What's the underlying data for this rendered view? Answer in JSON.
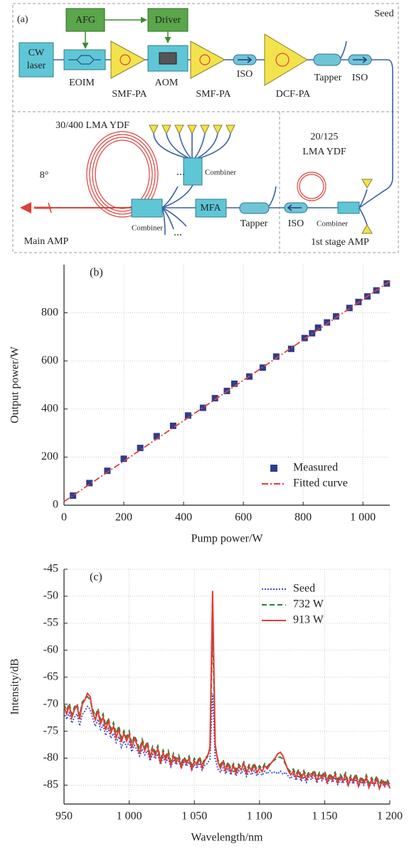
{
  "diagram": {
    "panel_label": "(a)",
    "seed": "Seed",
    "afg": "AFG",
    "driver": "Driver",
    "cw_laser": [
      "CW",
      "laser"
    ],
    "eoim": "EOIM",
    "smf_pa_1": "SMF-PA",
    "aom": "AOM",
    "smf_pa_2": "SMF-PA",
    "iso_1": "ISO",
    "dcf_pa": "DCF-PA",
    "tapper_1": "Tapper",
    "iso_2": "ISO",
    "main_fiber": "30/400 LMA YDF",
    "combiner_1": "Combiner",
    "angle": "8°",
    "combiner_2": "Combiner",
    "mfa": "MFA",
    "tapper_2": "Tapper",
    "iso_3": "ISO",
    "stage_fiber": [
      "20/125",
      "LMA YDF"
    ],
    "combiner_3": "Combiner",
    "main_amp": "Main AMP",
    "first_stage_amp": "1st stage AMP"
  },
  "chart_data": [
    {
      "type": "scatter",
      "panel_label": "(b)",
      "x_label": "Pump power/W",
      "y_label": "Output power/W",
      "xlim": [
        0,
        1090
      ],
      "ylim": [
        0,
        1000
      ],
      "xticks": [
        0,
        200,
        400,
        600,
        800,
        {
          "value": 1000,
          "label": "1 000"
        }
      ],
      "yticks": [
        0,
        200,
        400,
        600,
        800
      ],
      "grid": true,
      "legend": "lower right",
      "series": [
        {
          "name": "Measured",
          "color": "#2e3d8c",
          "marker": "square",
          "x": [
            30,
            85,
            145,
            200,
            255,
            310,
            365,
            415,
            465,
            505,
            545,
            570,
            620,
            665,
            710,
            760,
            805,
            830,
            850,
            880,
            910,
            955,
            985,
            1015,
            1045,
            1080
          ],
          "values": [
            40,
            92,
            143,
            193,
            238,
            287,
            330,
            373,
            405,
            445,
            475,
            505,
            535,
            572,
            618,
            650,
            695,
            715,
            738,
            760,
            785,
            820,
            845,
            868,
            893,
            922
          ]
        },
        {
          "name": "Fitted curve",
          "color": "#e0403a",
          "line_style": "dash-dot",
          "x": [
            0,
            1090
          ],
          "values": [
            15,
            931
          ]
        }
      ]
    },
    {
      "type": "line",
      "panel_label": "(c)",
      "x_label": "Wavelength/nm",
      "y_label": "Intensity/dB",
      "xlim": [
        950,
        1200
      ],
      "ylim": [
        -88.5,
        -45
      ],
      "xticks": [
        950,
        {
          "value": 1000,
          "label": "1 000"
        },
        {
          "value": 1050,
          "label": "1 050"
        },
        {
          "value": 1100,
          "label": "1 100"
        },
        {
          "value": 1150,
          "label": "1 150"
        },
        {
          "value": 1200,
          "label": "1 200"
        }
      ],
      "yticks": [
        -45,
        -50,
        -55,
        -60,
        -65,
        -70,
        -75,
        -80,
        -85
      ],
      "grid": true,
      "legend": "upper right",
      "x": [
        950,
        952,
        954,
        956,
        958,
        960,
        962,
        964,
        966,
        968,
        970,
        972,
        974,
        976,
        978,
        980,
        982,
        984,
        986,
        988,
        990,
        992,
        994,
        996,
        998,
        1000,
        1002,
        1004,
        1006,
        1008,
        1010,
        1012,
        1014,
        1016,
        1018,
        1020,
        1022,
        1024,
        1026,
        1028,
        1030,
        1032,
        1034,
        1036,
        1038,
        1040,
        1042,
        1044,
        1046,
        1048,
        1050,
        1052,
        1054,
        1056,
        1058,
        1060,
        1062,
        1064,
        1066,
        1068,
        1070,
        1072,
        1074,
        1076,
        1078,
        1080,
        1082,
        1084,
        1086,
        1088,
        1090,
        1092,
        1094,
        1096,
        1098,
        1100,
        1102,
        1104,
        1106,
        1108,
        1110,
        1112,
        1114,
        1116,
        1118,
        1120,
        1122,
        1124,
        1126,
        1128,
        1130,
        1132,
        1134,
        1136,
        1138,
        1140,
        1142,
        1144,
        1146,
        1148,
        1150,
        1152,
        1154,
        1156,
        1158,
        1160,
        1162,
        1164,
        1166,
        1168,
        1170,
        1172,
        1174,
        1176,
        1178,
        1180,
        1182,
        1184,
        1186,
        1188,
        1190,
        1192,
        1194,
        1196,
        1198,
        1200
      ],
      "series": [
        {
          "name": "Seed",
          "color": "#3b4fc4",
          "line_style": "dotted",
          "values": [
            -71.5,
            -72.8,
            -71.6,
            -73.5,
            -72.4,
            -71.8,
            -74.0,
            -71.9,
            -71.3,
            -70.4,
            -70.9,
            -72.6,
            -74.1,
            -72.8,
            -74.7,
            -73.9,
            -75.8,
            -74.5,
            -76.3,
            -75.4,
            -77.1,
            -76.0,
            -78.0,
            -76.8,
            -77.9,
            -77.0,
            -78.8,
            -77.6,
            -78.5,
            -79.6,
            -78.3,
            -79.4,
            -78.6,
            -80.5,
            -79.3,
            -80.1,
            -79.2,
            -81.2,
            -79.9,
            -80.8,
            -80.0,
            -81.6,
            -80.3,
            -81.2,
            -80.6,
            -81.9,
            -80.8,
            -81.5,
            -80.7,
            -82.3,
            -81.2,
            -81.9,
            -80.9,
            -82.2,
            -81.3,
            -81.0,
            -80.2,
            -68.0,
            -80.0,
            -82.0,
            -82.6,
            -81.8,
            -82.9,
            -82.0,
            -83.1,
            -82.2,
            -83.3,
            -82.3,
            -82.9,
            -82.0,
            -83.4,
            -82.5,
            -83.1,
            -82.3,
            -83.3,
            -82.6,
            -83.2,
            -82.4,
            -82.9,
            -82.3,
            -82.8,
            -82.5,
            -82.9,
            -82.4,
            -83.0,
            -82.6,
            -83.3,
            -83.8,
            -83.0,
            -84.1,
            -83.2,
            -84.3,
            -83.4,
            -84.5,
            -83.5,
            -84.0,
            -83.3,
            -84.6,
            -83.6,
            -84.2,
            -83.4,
            -84.8,
            -83.8,
            -84.5,
            -83.6,
            -84.9,
            -84.0,
            -84.7,
            -83.7,
            -85.2,
            -84.1,
            -84.8,
            -83.9,
            -85.3,
            -84.3,
            -85.0,
            -84.0,
            -85.5,
            -84.4,
            -85.1,
            -84.2,
            -85.7,
            -84.6,
            -85.3,
            -84.7,
            -85.6
          ]
        },
        {
          "name": "732 W",
          "color": "#2e7d32",
          "line_style": "dashed",
          "values": [
            -70.0,
            -71.2,
            -69.8,
            -71.9,
            -70.5,
            -69.9,
            -72.1,
            -69.6,
            -69.0,
            -68.6,
            -69.2,
            -70.9,
            -72.2,
            -70.8,
            -72.9,
            -71.8,
            -74.0,
            -72.5,
            -74.6,
            -73.4,
            -75.5,
            -74.0,
            -76.2,
            -74.9,
            -76.1,
            -75.0,
            -77.3,
            -75.8,
            -76.9,
            -78.4,
            -76.5,
            -77.9,
            -76.9,
            -79.3,
            -77.8,
            -78.9,
            -77.7,
            -80.2,
            -78.5,
            -79.7,
            -78.6,
            -80.6,
            -79.1,
            -80.2,
            -79.4,
            -80.9,
            -79.8,
            -80.5,
            -79.6,
            -81.3,
            -80.0,
            -80.8,
            -79.7,
            -81.2,
            -80.0,
            -79.6,
            -78.4,
            -56.0,
            -78.0,
            -80.2,
            -81.3,
            -80.3,
            -81.7,
            -80.7,
            -82.0,
            -81.0,
            -82.2,
            -81.1,
            -81.7,
            -80.7,
            -82.3,
            -81.2,
            -81.9,
            -80.9,
            -82.1,
            -81.4,
            -82.0,
            -81.0,
            -81.6,
            -80.9,
            -80.6,
            -80.3,
            -79.9,
            -79.8,
            -80.2,
            -81.2,
            -82.0,
            -82.6,
            -82.0,
            -83.0,
            -82.1,
            -83.2,
            -82.3,
            -83.4,
            -82.5,
            -83.0,
            -82.2,
            -83.6,
            -82.6,
            -83.3,
            -82.4,
            -83.9,
            -82.8,
            -83.6,
            -82.6,
            -84.0,
            -83.0,
            -83.8,
            -82.7,
            -84.3,
            -83.2,
            -83.9,
            -82.9,
            -84.5,
            -83.4,
            -84.2,
            -83.1,
            -84.7,
            -83.6,
            -84.4,
            -83.3,
            -84.9,
            -83.8,
            -84.6,
            -83.9,
            -85.0
          ]
        },
        {
          "name": "913 W",
          "color": "#e53935",
          "line_style": "solid",
          "values": [
            -70.5,
            -71.8,
            -70.2,
            -72.5,
            -71.0,
            -70.3,
            -72.8,
            -70.0,
            -69.2,
            -68.0,
            -68.6,
            -71.5,
            -72.9,
            -71.2,
            -73.6,
            -72.4,
            -74.8,
            -73.0,
            -75.3,
            -74.1,
            -76.2,
            -74.6,
            -77.0,
            -75.4,
            -76.8,
            -75.6,
            -78.1,
            -76.3,
            -77.5,
            -79.2,
            -77.0,
            -78.6,
            -77.4,
            -80.1,
            -78.3,
            -79.5,
            -78.2,
            -81.0,
            -79.0,
            -80.3,
            -79.1,
            -81.4,
            -79.6,
            -80.8,
            -79.9,
            -81.7,
            -80.2,
            -81.0,
            -80.0,
            -82.1,
            -80.5,
            -81.3,
            -80.1,
            -81.8,
            -80.4,
            -79.8,
            -78.0,
            -49.0,
            -77.5,
            -80.6,
            -81.9,
            -80.7,
            -82.3,
            -81.1,
            -82.6,
            -81.4,
            -82.8,
            -81.5,
            -82.2,
            -81.0,
            -82.9,
            -81.6,
            -82.4,
            -81.3,
            -82.7,
            -81.8,
            -82.5,
            -81.4,
            -82.0,
            -81.2,
            -80.6,
            -80.0,
            -79.2,
            -78.9,
            -79.6,
            -81.0,
            -82.3,
            -83.1,
            -82.4,
            -83.6,
            -82.5,
            -83.8,
            -82.7,
            -84.0,
            -82.9,
            -83.5,
            -82.6,
            -84.2,
            -83.0,
            -83.8,
            -82.8,
            -84.5,
            -83.2,
            -84.1,
            -83.0,
            -84.6,
            -83.4,
            -84.3,
            -83.1,
            -85.0,
            -83.6,
            -84.4,
            -83.3,
            -85.2,
            -83.8,
            -84.7,
            -83.5,
            -85.4,
            -84.0,
            -84.9,
            -83.7,
            -85.6,
            -84.2,
            -85.1,
            -84.3,
            -85.5
          ]
        }
      ]
    }
  ]
}
